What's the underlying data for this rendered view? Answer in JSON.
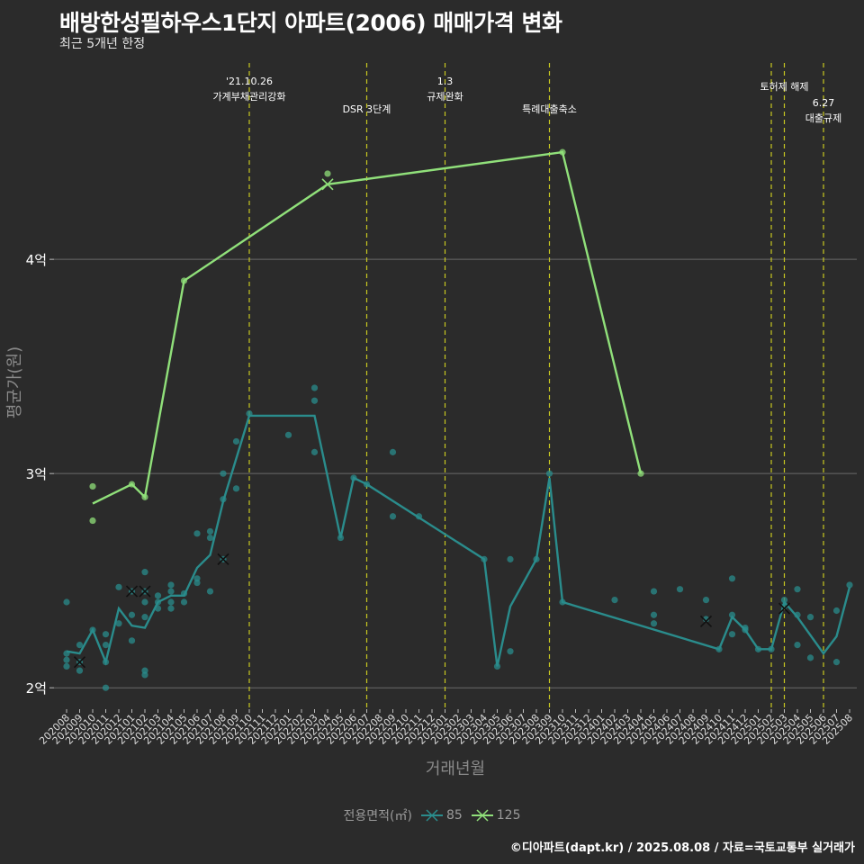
{
  "title": "배방한성필하우스1단지 아파트(2006) 매매가격 변화",
  "subtitle": "최근 5개년 한정",
  "caption": "©디아파트(dapt.kr) / 2025.08.08 / 자료=국토교통부 실거래가",
  "colors": {
    "background": "#2b2b2b",
    "series85": "#2a8c8c",
    "series125": "#90e07a",
    "event": "#c8c820",
    "grid": "#6a6a6a",
    "text": "#ffffff"
  },
  "chart_data": {
    "type": "line",
    "title": "배방한성필하우스1단지 아파트(2006) 매매가격 변화",
    "xlabel": "거래년월",
    "ylabel": "평균가(원)",
    "ylim": [
      1.9,
      4.95
    ],
    "yticks": [
      2,
      3,
      4
    ],
    "ytick_labels": [
      "2억",
      "3억",
      "4억"
    ],
    "x": [
      "202008",
      "202009",
      "202010",
      "202011",
      "202012",
      "202101",
      "202102",
      "202103",
      "202104",
      "202105",
      "202106",
      "202107",
      "202108",
      "202109",
      "202110",
      "202111",
      "202112",
      "202201",
      "202202",
      "202203",
      "202204",
      "202205",
      "202206",
      "202207",
      "202208",
      "202209",
      "202210",
      "202211",
      "202212",
      "202301",
      "202302",
      "202303",
      "202304",
      "202305",
      "202306",
      "202307",
      "202308",
      "202309",
      "202310",
      "202311",
      "202312",
      "202401",
      "202402",
      "202403",
      "202404",
      "202405",
      "202406",
      "202407",
      "202408",
      "202409",
      "202410",
      "202411",
      "202412",
      "202501",
      "202502",
      "202503",
      "202504",
      "202505",
      "202506",
      "202507",
      "202508"
    ],
    "legend_title": "전용면적(㎡)",
    "series": [
      {
        "name": "85",
        "line": [
          [
            0,
            2.17
          ],
          [
            1,
            2.16
          ],
          [
            2,
            2.27
          ],
          [
            3,
            2.12
          ],
          [
            4,
            2.37
          ],
          [
            5,
            2.29
          ],
          [
            6,
            2.28
          ],
          [
            7,
            2.4
          ],
          [
            8,
            2.43
          ],
          [
            9,
            2.43
          ],
          [
            10,
            2.56
          ],
          [
            11,
            2.62
          ],
          [
            12,
            2.87
          ],
          [
            13,
            3.07
          ],
          [
            14,
            3.27
          ],
          [
            19,
            3.27
          ],
          [
            21,
            2.7
          ],
          [
            22,
            2.98
          ],
          [
            23,
            2.95
          ],
          [
            32,
            2.6
          ],
          [
            33,
            2.1
          ],
          [
            34,
            2.38
          ],
          [
            36,
            2.6
          ],
          [
            37,
            2.98
          ],
          [
            38,
            2.4
          ],
          [
            50,
            2.18
          ],
          [
            51,
            2.33
          ],
          [
            52,
            2.27
          ],
          [
            53,
            2.18
          ],
          [
            54,
            2.18
          ],
          [
            55,
            2.4
          ],
          [
            56,
            2.33
          ],
          [
            58,
            2.16
          ],
          [
            59,
            2.24
          ],
          [
            60,
            2.47
          ]
        ],
        "points": [
          [
            0,
            2.4
          ],
          [
            0,
            2.16
          ],
          [
            0,
            2.13
          ],
          [
            0,
            2.1
          ],
          [
            1,
            2.2
          ],
          [
            1,
            2.12
          ],
          [
            1,
            2.08
          ],
          [
            2,
            2.27
          ],
          [
            3,
            2.25
          ],
          [
            3,
            2.2
          ],
          [
            3,
            2.12
          ],
          [
            3,
            2.0
          ],
          [
            4,
            2.47
          ],
          [
            4,
            2.3
          ],
          [
            5,
            2.45
          ],
          [
            5,
            2.34
          ],
          [
            5,
            2.22
          ],
          [
            6,
            2.54
          ],
          [
            6,
            2.45
          ],
          [
            6,
            2.4
          ],
          [
            6,
            2.33
          ],
          [
            6,
            2.08
          ],
          [
            6,
            2.06
          ],
          [
            7,
            2.43
          ],
          [
            7,
            2.4
          ],
          [
            7,
            2.37
          ],
          [
            8,
            2.48
          ],
          [
            8,
            2.45
          ],
          [
            8,
            2.4
          ],
          [
            8,
            2.37
          ],
          [
            9,
            2.44
          ],
          [
            9,
            2.4
          ],
          [
            10,
            2.72
          ],
          [
            10,
            2.51
          ],
          [
            10,
            2.49
          ],
          [
            11,
            2.73
          ],
          [
            11,
            2.7
          ],
          [
            11,
            2.45
          ],
          [
            12,
            3.0
          ],
          [
            12,
            2.88
          ],
          [
            12,
            2.6
          ],
          [
            13,
            3.15
          ],
          [
            13,
            2.93
          ],
          [
            14,
            3.28
          ],
          [
            17,
            3.18
          ],
          [
            19,
            3.4
          ],
          [
            19,
            3.34
          ],
          [
            19,
            3.1
          ],
          [
            21,
            2.7
          ],
          [
            22,
            2.98
          ],
          [
            23,
            2.95
          ],
          [
            25,
            3.1
          ],
          [
            25,
            2.8
          ],
          [
            27,
            2.8
          ],
          [
            32,
            2.6
          ],
          [
            33,
            2.1
          ],
          [
            34,
            2.6
          ],
          [
            34,
            2.17
          ],
          [
            36,
            2.6
          ],
          [
            37,
            3.0
          ],
          [
            38,
            2.4
          ],
          [
            42,
            2.41
          ],
          [
            45,
            2.45
          ],
          [
            45,
            2.34
          ],
          [
            45,
            2.3
          ],
          [
            47,
            2.46
          ],
          [
            49,
            2.41
          ],
          [
            49,
            2.32
          ],
          [
            50,
            2.18
          ],
          [
            51,
            2.51
          ],
          [
            51,
            2.34
          ],
          [
            51,
            2.25
          ],
          [
            52,
            2.28
          ],
          [
            52,
            2.27
          ],
          [
            53,
            2.18
          ],
          [
            54,
            2.18
          ],
          [
            55,
            2.41
          ],
          [
            55,
            2.38
          ],
          [
            56,
            2.46
          ],
          [
            56,
            2.34
          ],
          [
            56,
            2.2
          ],
          [
            57,
            2.33
          ],
          [
            57,
            2.14
          ],
          [
            59,
            2.36
          ],
          [
            59,
            2.12
          ],
          [
            60,
            2.48
          ]
        ],
        "cancelled": [
          [
            1,
            2.12
          ],
          [
            5,
            2.45
          ],
          [
            6,
            2.45
          ],
          [
            12,
            2.6
          ],
          [
            49,
            2.31
          ],
          [
            55,
            2.37
          ]
        ]
      },
      {
        "name": "125",
        "line": [
          [
            2,
            2.86
          ],
          [
            5,
            2.95
          ],
          [
            6,
            2.89
          ],
          [
            9,
            3.9
          ],
          [
            20,
            4.35
          ],
          [
            38,
            4.5
          ],
          [
            44,
            3.0
          ]
        ],
        "points": [
          [
            2,
            2.94
          ],
          [
            2,
            2.78
          ],
          [
            5,
            2.95
          ],
          [
            6,
            2.89
          ],
          [
            9,
            3.9
          ],
          [
            20,
            4.4
          ],
          [
            38,
            4.5
          ],
          [
            44,
            3.0
          ]
        ],
        "cancelled": [
          [
            20,
            4.35
          ]
        ]
      }
    ],
    "events": [
      {
        "x": 14,
        "lines": [
          "'21.10.26",
          "가계부채관리강화"
        ],
        "level": 0
      },
      {
        "x": 23,
        "lines": [
          "DSR 3단계"
        ],
        "level": 2
      },
      {
        "x": 29,
        "lines": [
          "1.3",
          "규제완화"
        ],
        "level": 0
      },
      {
        "x": 37,
        "lines": [
          "특례대출축소"
        ],
        "level": 3
      },
      {
        "x": 54,
        "lines": [],
        "level": 1
      },
      {
        "x": 55,
        "lines": [
          "토허제 해제"
        ],
        "level": 1
      },
      {
        "x": 58,
        "lines": [
          "6.27",
          "대출규제"
        ],
        "level": 2
      }
    ]
  }
}
